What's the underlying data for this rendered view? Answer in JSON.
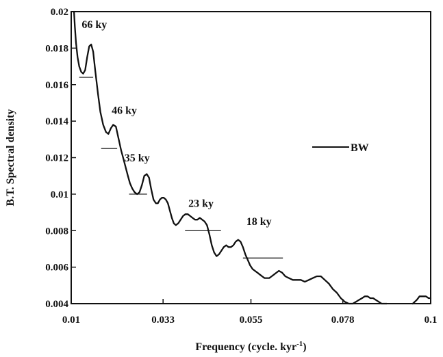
{
  "chart_data": {
    "type": "line",
    "title": "",
    "xlabel": "Frequency (cycle. kyr",
    "xlabel_sup": "-1",
    "xlabel_end": ")",
    "ylabel": "B.T. Spectral density",
    "xlim": [
      0.01,
      0.1
    ],
    "ylim": [
      0.004,
      0.02
    ],
    "x_ticks": [
      0.01,
      0.033,
      0.055,
      0.078,
      0.1
    ],
    "x_tick_labels": [
      "0.01",
      "0.033",
      "0.055",
      "0.078",
      "0.1"
    ],
    "y_ticks": [
      0.004,
      0.006,
      0.008,
      0.01,
      0.012,
      0.014,
      0.016,
      0.018,
      0.02
    ],
    "y_tick_labels": [
      "0.004",
      "0.006",
      "0.008",
      "0.01",
      "0.012",
      "0.014",
      "0.016",
      "0.018",
      "0.02"
    ],
    "grid": false,
    "legend": {
      "position": "right",
      "entries": [
        {
          "name": "BW"
        }
      ]
    },
    "series": [
      {
        "name": "BW",
        "x": [
          0.0107,
          0.0109,
          0.0112,
          0.0116,
          0.012,
          0.0125,
          0.013,
          0.0135,
          0.014,
          0.0145,
          0.015,
          0.0155,
          0.016,
          0.0167,
          0.0173,
          0.018,
          0.0187,
          0.0193,
          0.0199,
          0.0205,
          0.0212,
          0.0218,
          0.0225,
          0.023,
          0.0236,
          0.0242,
          0.0247,
          0.0253,
          0.0259,
          0.0265,
          0.0271,
          0.0277,
          0.0283,
          0.0289,
          0.0295,
          0.03,
          0.0306,
          0.0312,
          0.0317,
          0.0322,
          0.0327,
          0.0332,
          0.0337,
          0.0342,
          0.0347,
          0.0352,
          0.0357,
          0.0362,
          0.0368,
          0.0374,
          0.038,
          0.0386,
          0.0392,
          0.0398,
          0.0404,
          0.041,
          0.0416,
          0.0422,
          0.0428,
          0.0434,
          0.044,
          0.0446,
          0.0452,
          0.0458,
          0.0464,
          0.047,
          0.0476,
          0.0482,
          0.0488,
          0.0494,
          0.05,
          0.0506,
          0.0512,
          0.0518,
          0.0524,
          0.053,
          0.0536,
          0.0542,
          0.0548,
          0.0554,
          0.056,
          0.0566,
          0.0572,
          0.0578,
          0.0584,
          0.059,
          0.0596,
          0.0602,
          0.0608,
          0.0614,
          0.062,
          0.0628,
          0.0636,
          0.0645,
          0.0655,
          0.0665,
          0.0675,
          0.0685,
          0.0695,
          0.0705,
          0.0715,
          0.0725,
          0.0735,
          0.0745,
          0.0755,
          0.0765,
          0.0775,
          0.0785,
          0.0795,
          0.0805,
          0.0813,
          0.082,
          0.0828,
          0.0835,
          0.0842,
          0.0849,
          0.0856,
          0.0863,
          0.087,
          0.0877,
          0.0884,
          0.089
        ],
        "y": [
          0.02,
          0.0192,
          0.0183,
          0.0175,
          0.017,
          0.0167,
          0.0166,
          0.0168,
          0.0175,
          0.0181,
          0.0182,
          0.0178,
          0.0168,
          0.0155,
          0.0145,
          0.0138,
          0.0134,
          0.0133,
          0.0136,
          0.0138,
          0.0137,
          0.0131,
          0.0124,
          0.012,
          0.0115,
          0.011,
          0.0106,
          0.0103,
          0.0101,
          0.01,
          0.0101,
          0.0105,
          0.011,
          0.0111,
          0.0109,
          0.0103,
          0.0097,
          0.0095,
          0.0095,
          0.0097,
          0.0098,
          0.0098,
          0.0097,
          0.0095,
          0.0091,
          0.0087,
          0.0084,
          0.0083,
          0.0084,
          0.0086,
          0.0088,
          0.0089,
          0.0089,
          0.0088,
          0.0087,
          0.0086,
          0.0086,
          0.0087,
          0.0086,
          0.0085,
          0.0083,
          0.0078,
          0.0072,
          0.0068,
          0.0066,
          0.0067,
          0.0069,
          0.0071,
          0.0072,
          0.0071,
          0.0071,
          0.0072,
          0.0074,
          0.0075,
          0.0074,
          0.0071,
          0.0067,
          0.0064,
          0.0061,
          0.0059,
          0.0058,
          0.0057,
          0.0056,
          0.0055,
          0.0054,
          0.0054,
          0.0054,
          0.0055,
          0.0056,
          0.0057,
          0.0058,
          0.0057,
          0.0055,
          0.0054,
          0.0053,
          0.0053,
          0.0053,
          0.0052,
          0.0053,
          0.0054,
          0.0055,
          0.0055,
          0.0053,
          0.0051,
          0.0048,
          0.0046,
          0.0043,
          0.0041,
          0.004,
          0.004,
          0.0041,
          0.0042,
          0.0043,
          0.0044,
          0.0044,
          0.0043,
          0.0043,
          0.0042,
          0.0041,
          0.004,
          0.004,
          0.004
        ]
      }
    ],
    "extra_segments": [
      {
        "x": [
          0.0955,
          0.0965,
          0.0972,
          0.098,
          0.0988,
          0.0995,
          0.1
        ],
        "y": [
          0.004,
          0.0042,
          0.0044,
          0.0044,
          0.0044,
          0.0043,
          0.0043
        ]
      }
    ],
    "annotations": [
      {
        "text": "66 ky",
        "x": 0.0158,
        "y": 0.0191
      },
      {
        "text": "46 ky",
        "x": 0.0233,
        "y": 0.0144
      },
      {
        "text": "35 ky",
        "x": 0.0265,
        "y": 0.0118
      },
      {
        "text": "23 ky",
        "x": 0.0425,
        "y": 0.0093
      },
      {
        "text": "18 ky",
        "x": 0.057,
        "y": 0.0083
      }
    ],
    "reference_lines": [
      {
        "x": [
          0.012,
          0.0155
        ],
        "y": 0.0164
      },
      {
        "x": [
          0.0175,
          0.0215
        ],
        "y": 0.0125
      },
      {
        "x": [
          0.0245,
          0.029
        ],
        "y": 0.01
      },
      {
        "x": [
          0.0385,
          0.0475
        ],
        "y": 0.008
      },
      {
        "x": [
          0.053,
          0.063
        ],
        "y": 0.0065
      }
    ]
  }
}
